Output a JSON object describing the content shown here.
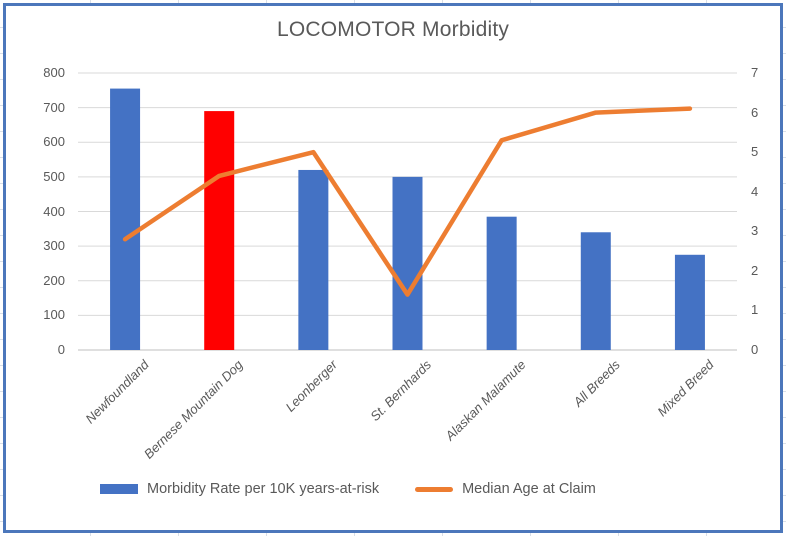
{
  "window": {
    "border_color": "#4c77bb",
    "background_color": "#ffffff"
  },
  "chart_data": {
    "type": "combo",
    "title": "LOCOMOTOR Morbidity",
    "categories": [
      "Newfoundland",
      "Bernese Mountain Dog",
      "Leonberger",
      "St. Bernhards",
      "Alaskan Malamute",
      "All Breeds",
      "Mixed Breed"
    ],
    "series": [
      {
        "name": "Morbidity Rate per 10K years-at-risk",
        "type": "bar",
        "axis": "left",
        "values": [
          755,
          690,
          520,
          500,
          385,
          340,
          275
        ],
        "color": "#4472C4",
        "highlight": {
          "category": "Bernese Mountain Dog",
          "index": 1,
          "color": "#FF0000"
        }
      },
      {
        "name": "Median Age at Claim",
        "type": "line",
        "axis": "right",
        "values": [
          2.8,
          4.4,
          5.0,
          1.4,
          5.3,
          6.0,
          6.1
        ],
        "color": "#ED7D31"
      }
    ],
    "left_axis": {
      "min": 0,
      "max": 800,
      "step": 100,
      "ticks": [
        "0",
        "100",
        "200",
        "300",
        "400",
        "500",
        "600",
        "700",
        "800"
      ]
    },
    "right_axis": {
      "min": 0,
      "max": 7,
      "step": 1,
      "ticks": [
        "0",
        "1",
        "2",
        "3",
        "4",
        "5",
        "6",
        "7"
      ]
    },
    "grid": true,
    "gridline_color": "#D9D9D9",
    "axis_line_color": "#BFBFBF",
    "text_color": "#595959",
    "legend_position": "bottom"
  }
}
